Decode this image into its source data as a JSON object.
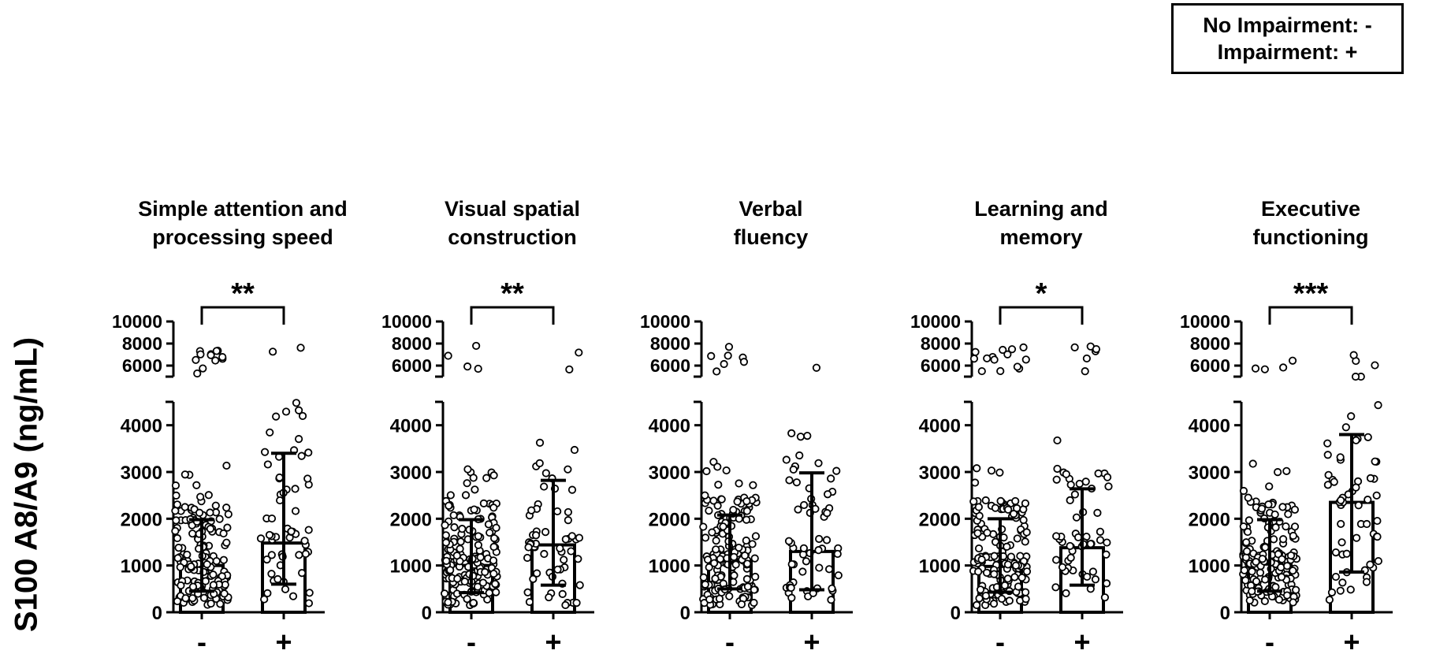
{
  "legend": {
    "line1": "No Impairment: -",
    "line2": "Impairment: +"
  },
  "chart_data": {
    "type": "bar",
    "ylabel": "S100 A8/A9 (ng/mL)",
    "categories": [
      "-",
      "+"
    ],
    "y_lower_ticks": [
      0,
      1000,
      2000,
      3000,
      4000
    ],
    "y_upper_ticks": [
      6000,
      8000,
      10000
    ],
    "y_lower_range": [
      0,
      4500
    ],
    "y_upper_range": [
      5000,
      10000
    ],
    "axis_break": true,
    "grid": false,
    "legend_placement": "top-right",
    "panels": [
      {
        "title_lines": [
          "Simple attention and",
          "processing speed"
        ],
        "significance": "**",
        "bars": [
          {
            "category": "-",
            "value": 1000,
            "err_low": 450,
            "err_high": 1980
          },
          {
            "category": "+",
            "value": 1480,
            "err_low": 600,
            "err_high": 3400
          }
        ]
      },
      {
        "title_lines": [
          "Visual spatial",
          "construction"
        ],
        "significance": "**",
        "bars": [
          {
            "category": "-",
            "value": 1000,
            "err_low": 420,
            "err_high": 1980
          },
          {
            "category": "+",
            "value": 1440,
            "err_low": 580,
            "err_high": 2820
          }
        ]
      },
      {
        "title_lines": [
          "Verbal",
          "fluency"
        ],
        "significance": "",
        "bars": [
          {
            "category": "-",
            "value": 1100,
            "err_low": 500,
            "err_high": 2080
          },
          {
            "category": "+",
            "value": 1300,
            "err_low": 480,
            "err_high": 2980
          }
        ]
      },
      {
        "title_lines": [
          "Learning and",
          "memory"
        ],
        "significance": "*",
        "bars": [
          {
            "category": "-",
            "value": 980,
            "err_low": 430,
            "err_high": 2000
          },
          {
            "category": "+",
            "value": 1380,
            "err_low": 580,
            "err_high": 2640
          }
        ]
      },
      {
        "title_lines": [
          "Executive",
          "functioning"
        ],
        "significance": "***",
        "bars": [
          {
            "category": "-",
            "value": 1030,
            "err_low": 450,
            "err_high": 1980
          },
          {
            "category": "+",
            "value": 2350,
            "err_low": 860,
            "err_high": 3800
          }
        ]
      }
    ]
  }
}
